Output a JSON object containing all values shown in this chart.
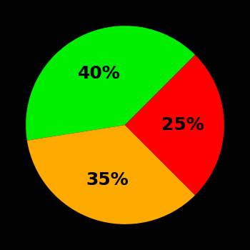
{
  "slices": [
    {
      "label": "40%",
      "value": 40,
      "color": "#00ee00"
    },
    {
      "label": "35%",
      "value": 35,
      "color": "#ffaa00"
    },
    {
      "label": "25%",
      "value": 25,
      "color": "#ff0000"
    }
  ],
  "background_color": "#000000",
  "text_color": "#000000",
  "startangle": 45,
  "label_fontsize": 18,
  "label_fontweight": "bold",
  "figsize": [
    3.5,
    3.5
  ],
  "dpi": 100
}
